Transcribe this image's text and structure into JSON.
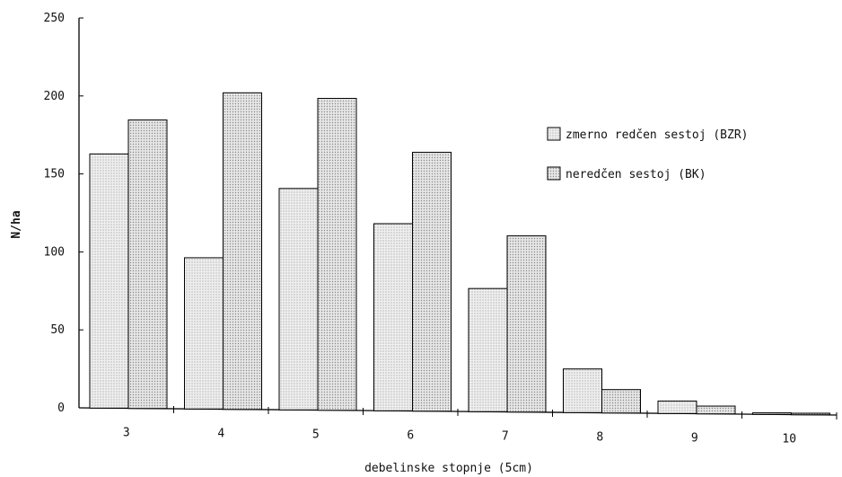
{
  "chart_data": {
    "type": "bar",
    "categories": [
      "3",
      "4",
      "5",
      "6",
      "7",
      "8",
      "9",
      "10"
    ],
    "series": [
      {
        "name": "zmerno redčen sestoj (BZR)",
        "values": [
          163,
          97,
          142,
          120,
          79,
          28,
          8,
          1
        ],
        "fill": "#e4e4e4"
      },
      {
        "name": "neredčen sestoj (BK)",
        "values": [
          185,
          203,
          200,
          166,
          113,
          15,
          5,
          1
        ],
        "fill": "#d8d8d8"
      }
    ],
    "xlabel": "debelinske stopnje (5cm)",
    "ylabel": "N/ha",
    "ylim": [
      0,
      250
    ],
    "yticks": [
      "0",
      "50",
      "100",
      "150",
      "200",
      "250"
    ],
    "grid": false,
    "legend_position": "right"
  }
}
